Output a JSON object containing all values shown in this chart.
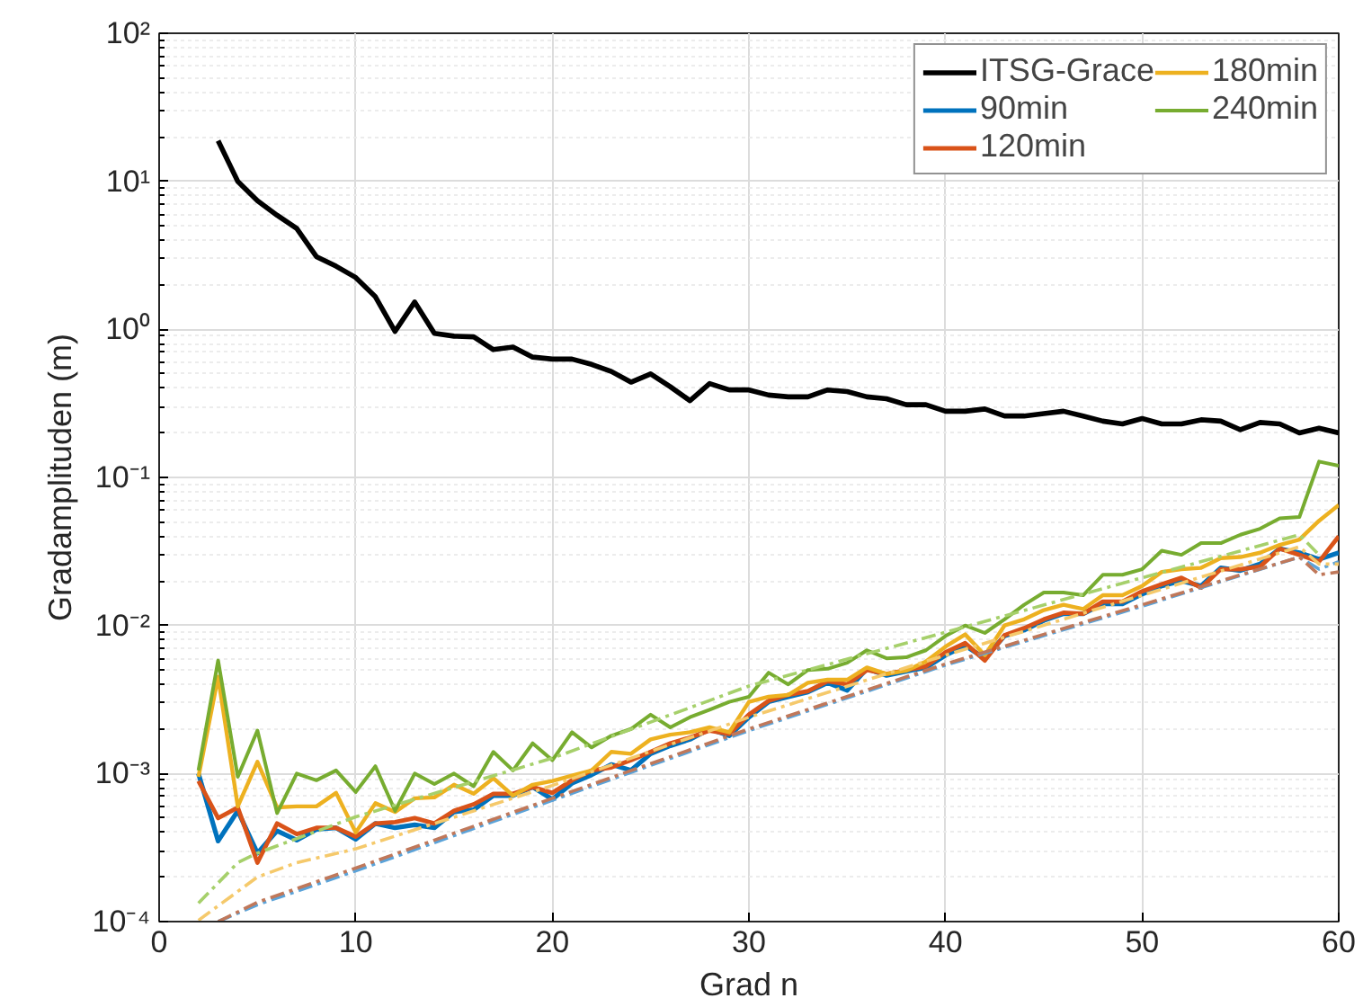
{
  "chart_data": {
    "type": "line",
    "xlabel": "Grad n",
    "ylabel": "Gradamplituden (m)",
    "log": "y",
    "grid": true,
    "legend": "top right",
    "line_style": "solid",
    "marker": "none",
    "xlim": [
      0,
      60
    ],
    "xticks": [
      0,
      10,
      20,
      30,
      40,
      50,
      60
    ],
    "ylim": [
      0.0001,
      100
    ],
    "yticks": [
      {
        "value": 0.0001,
        "label": "10⁻⁴"
      },
      {
        "value": 0.001,
        "label": "10⁻³"
      },
      {
        "value": 0.01,
        "label": "10⁻²"
      },
      {
        "value": 0.1,
        "label": "10⁻¹"
      },
      {
        "value": 1,
        "label": "10⁰"
      },
      {
        "value": 10,
        "label": "10¹"
      },
      {
        "value": 100,
        "label": "10²"
      }
    ],
    "x": [
      2,
      3,
      4,
      5,
      6,
      7,
      8,
      9,
      10,
      11,
      12,
      13,
      14,
      15,
      16,
      17,
      18,
      19,
      20,
      21,
      22,
      23,
      24,
      25,
      26,
      27,
      28,
      29,
      30,
      31,
      32,
      33,
      34,
      35,
      36,
      37,
      38,
      39,
      40,
      41,
      42,
      43,
      44,
      45,
      46,
      47,
      48,
      49,
      50,
      51,
      52,
      53,
      54,
      55,
      56,
      57,
      58,
      59,
      60
    ],
    "series": [
      {
        "name": "ITSG-Grace",
        "color": "#000000",
        "values": [
          null,
          18.8,
          10,
          7.4,
          5.9,
          4.8,
          3.1,
          2.67,
          2.24,
          1.66,
          0.97,
          1.53,
          0.94,
          0.9,
          0.89,
          0.73,
          0.76,
          0.65,
          0.63,
          0.63,
          0.58,
          0.52,
          0.44,
          0.5,
          0.41,
          0.33,
          0.43,
          0.39,
          0.39,
          0.36,
          0.35,
          0.35,
          0.39,
          0.38,
          0.35,
          0.34,
          0.31,
          0.31,
          0.28,
          0.28,
          0.29,
          0.26,
          0.26,
          0.27,
          0.28,
          0.26,
          0.24,
          0.23,
          0.25,
          0.23,
          0.23,
          0.245,
          0.24,
          0.21,
          0.235,
          0.23,
          0.2,
          0.215,
          0.2
        ]
      },
      {
        "name": "90min",
        "color": "#0072bd",
        "values": [
          0.001,
          0.00035,
          0.00056,
          0.00029,
          0.00041,
          0.000355,
          0.00042,
          0.00043,
          0.00036,
          0.00046,
          0.00043,
          0.00045,
          0.00043,
          0.00055,
          0.00057,
          0.00071,
          0.00071,
          0.00081,
          0.00067,
          0.00086,
          0.00098,
          0.00115,
          0.00105,
          0.00136,
          0.00154,
          0.0017,
          0.002,
          0.0018,
          0.0024,
          0.00305,
          0.0033,
          0.00355,
          0.0041,
          0.00365,
          0.0051,
          0.0046,
          0.0049,
          0.0052,
          0.0063,
          0.0073,
          0.006,
          0.0085,
          0.0093,
          0.0108,
          0.012,
          0.012,
          0.014,
          0.014,
          0.0163,
          0.0185,
          0.02,
          0.0185,
          0.0245,
          0.0235,
          0.026,
          0.033,
          0.031,
          0.028,
          0.031
        ]
      },
      {
        "name": "120min",
        "color": "#d95319",
        "values": [
          0.00089,
          0.0005,
          0.00059,
          0.00025,
          0.00046,
          0.00039,
          0.00043,
          0.00043,
          0.000375,
          0.00046,
          0.00047,
          0.0005,
          0.00046,
          0.00056,
          0.00062,
          0.00073,
          0.00073,
          0.00081,
          0.00074,
          0.0009,
          0.00105,
          0.0011,
          0.00123,
          0.0014,
          0.0016,
          0.00175,
          0.00195,
          0.00185,
          0.0025,
          0.0031,
          0.0034,
          0.0036,
          0.0042,
          0.004,
          0.005,
          0.0047,
          0.005,
          0.0053,
          0.0066,
          0.0076,
          0.0058,
          0.0086,
          0.0096,
          0.011,
          0.0122,
          0.012,
          0.0145,
          0.0145,
          0.017,
          0.019,
          0.021,
          0.018,
          0.024,
          0.024,
          0.025,
          0.033,
          0.03,
          0.027,
          0.04
        ]
      },
      {
        "name": "180min",
        "color": "#edb120",
        "values": [
          0.00095,
          0.0045,
          0.0006,
          0.0012,
          0.00059,
          0.0006,
          0.0006,
          0.00074,
          0.0004,
          0.00063,
          0.00055,
          0.00068,
          0.00069,
          0.00084,
          0.00073,
          0.00093,
          0.00071,
          0.00084,
          0.00089,
          0.00097,
          0.00105,
          0.0014,
          0.00136,
          0.0017,
          0.00183,
          0.0019,
          0.00205,
          0.0019,
          0.00305,
          0.0033,
          0.0034,
          0.0041,
          0.0043,
          0.0043,
          0.0052,
          0.0047,
          0.00495,
          0.0057,
          0.0072,
          0.0087,
          0.0063,
          0.01,
          0.011,
          0.0127,
          0.0138,
          0.0129,
          0.016,
          0.016,
          0.0185,
          0.023,
          0.024,
          0.0245,
          0.0285,
          0.029,
          0.031,
          0.035,
          0.038,
          0.051,
          0.065
        ]
      },
      {
        "name": "240min",
        "color": "#77ac30",
        "values": [
          0.00105,
          0.0058,
          0.00095,
          0.00195,
          0.00054,
          0.001,
          0.0009,
          0.00105,
          0.00075,
          0.00112,
          0.00056,
          0.001,
          0.00085,
          0.001,
          0.00082,
          0.0014,
          0.00105,
          0.0016,
          0.00123,
          0.0019,
          0.0015,
          0.0018,
          0.002,
          0.0025,
          0.00205,
          0.0024,
          0.0027,
          0.00305,
          0.0033,
          0.0048,
          0.004,
          0.005,
          0.0051,
          0.0056,
          0.0068,
          0.006,
          0.0061,
          0.0068,
          0.0085,
          0.01,
          0.0089,
          0.011,
          0.0138,
          0.0167,
          0.0167,
          0.016,
          0.022,
          0.022,
          0.024,
          0.032,
          0.03,
          0.036,
          0.036,
          0.041,
          0.045,
          0.053,
          0.054,
          0.128,
          0.12
        ]
      },
      {
        "color": "#5ba3d9",
        "line_style": "dashed",
        "x": [
          3,
          5,
          10,
          20,
          30,
          40,
          50,
          58,
          59,
          60
        ],
        "values": [
          0.0001,
          0.00013,
          0.00022,
          0.00066,
          0.00195,
          0.0054,
          0.0135,
          0.029,
          0.024,
          0.027
        ]
      },
      {
        "color": "#c0785a",
        "line_style": "dashed",
        "x": [
          3,
          5,
          10,
          20,
          30,
          40,
          50,
          58,
          59,
          60
        ],
        "values": [
          0.0001,
          0.000135,
          0.00023,
          0.00068,
          0.002,
          0.0055,
          0.0138,
          0.029,
          0.022,
          0.023
        ]
      },
      {
        "color": "#f5c96b",
        "line_style": "dashed",
        "x": [
          2,
          5,
          7,
          10,
          20,
          30,
          40,
          50,
          58,
          59,
          60
        ],
        "values": [
          0.000102,
          0.0002,
          0.00025,
          0.00031,
          0.00083,
          0.0024,
          0.0063,
          0.016,
          0.034,
          0.026,
          0.026
        ]
      },
      {
        "color": "#a6d06b",
        "line_style": "dashed",
        "x": [
          2,
          4,
          5,
          10,
          20,
          30,
          40,
          50,
          58,
          59
        ],
        "values": [
          0.000133,
          0.00025,
          0.00029,
          0.00051,
          0.00127,
          0.0039,
          0.009,
          0.021,
          0.041,
          0.03
        ]
      }
    ]
  }
}
